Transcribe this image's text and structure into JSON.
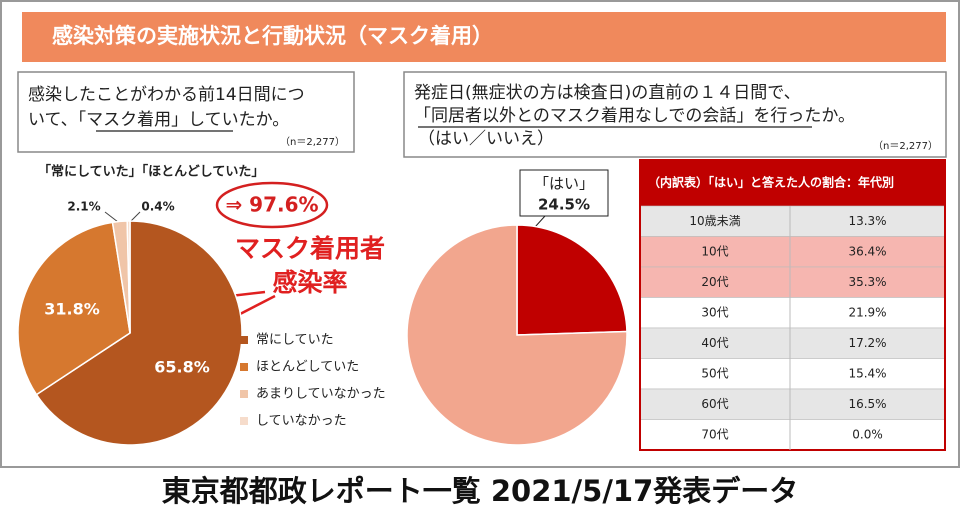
{
  "header": {
    "title": "感染対策の実施状況と行動状況（マスク着用）"
  },
  "chart_data": [
    {
      "type": "pie",
      "question": [
        "感染したことがわかる前14日間につ",
        "いて、「マスク着用」していたか。"
      ],
      "note": "（n＝2,277）",
      "annotations": [
        "「常にしていた」「ほとんどしていた」",
        "⇒ 97.6%",
        "マスク着用者",
        "感染率"
      ],
      "categories": [
        "常にしていた",
        "ほとんどしていた",
        "あまりしていなかった",
        "していなかった"
      ],
      "values": [
        65.8,
        31.8,
        2.1,
        0.4
      ],
      "value_labels": [
        "65.8%",
        "31.8%",
        "2.1%",
        "0.4%"
      ],
      "colors": [
        "#b4561f",
        "#d6782f",
        "#f0c5a8",
        "#f6dccb"
      ],
      "legend": "right"
    },
    {
      "type": "pie",
      "question": [
        "発症日(無症状の方は検査日)の直前の１４日間で、",
        "「同居者以外とのマスク着用なしでの会話」を行ったか。",
        "（はい／いいえ）"
      ],
      "note": "（n＝2,277）",
      "categories": [
        "「はい」",
        null
      ],
      "values": [
        24.5,
        75.5
      ],
      "value_labels": [
        "24.5%",
        null
      ],
      "colors": [
        "#c00000",
        "#f2a68e"
      ],
      "legend": null
    }
  ],
  "table": {
    "title": "（内訳表）「はい」と答えた人の割合：年代別",
    "rows": [
      [
        "10歳未満",
        "13.3%"
      ],
      [
        "10代",
        "36.4%"
      ],
      [
        "20代",
        "35.3%"
      ],
      [
        "30代",
        "21.9%"
      ],
      [
        "40代",
        "17.2%"
      ],
      [
        "50代",
        "15.4%"
      ],
      [
        "60代",
        "16.5%"
      ],
      [
        "70代",
        "0.0%"
      ]
    ],
    "row_colors": [
      "#e6e6e6",
      "#f6b6b0",
      "#f6b6b0",
      "#ffffff",
      "#e6e6e6",
      "#ffffff",
      "#e6e6e6",
      "#ffffff"
    ]
  },
  "footer": {
    "text": "東京都都政レポート一覧 2021/5/17発表データ"
  }
}
